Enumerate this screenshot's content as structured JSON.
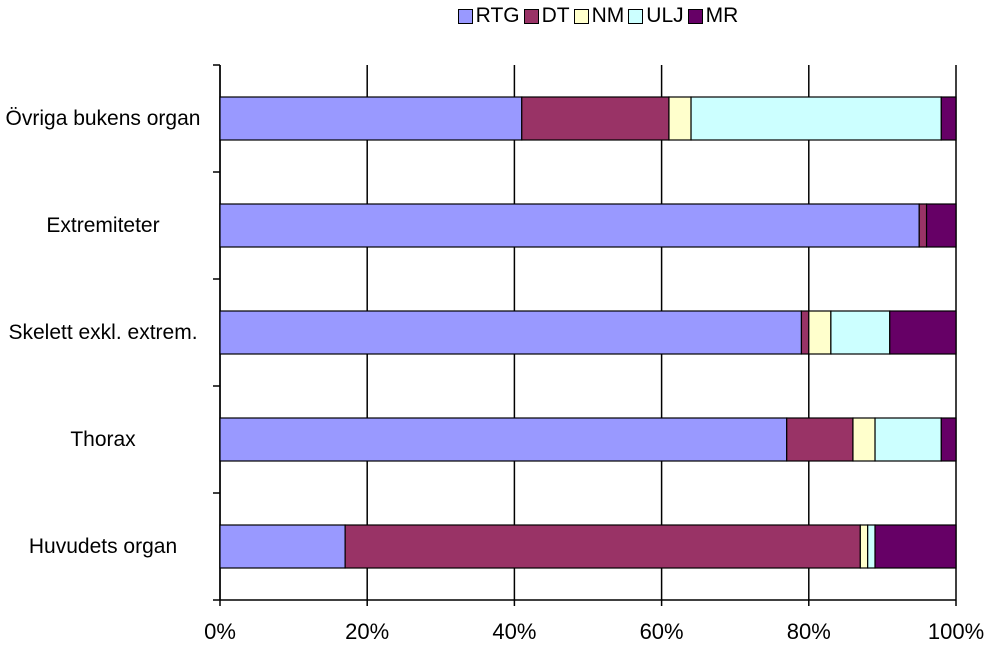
{
  "chart_data": {
    "type": "stacked-bar-horizontal",
    "categories": [
      "Huvudets organ",
      "Thorax",
      "Skelett exkl. extrem.",
      "Extremiteter",
      "Övriga bukens organ"
    ],
    "series": [
      {
        "name": "RTG",
        "color": "#9999ff",
        "values": [
          17,
          77,
          79,
          95,
          41
        ]
      },
      {
        "name": "DT",
        "color": "#993366",
        "values": [
          70,
          9,
          1,
          1,
          20
        ]
      },
      {
        "name": "NM",
        "color": "#ffffcc",
        "values": [
          1,
          3,
          3,
          0,
          3
        ]
      },
      {
        "name": "ULJ",
        "color": "#ccffff",
        "values": [
          1,
          9,
          8,
          0,
          34
        ]
      },
      {
        "name": "MR",
        "color": "#660066",
        "values": [
          11,
          2,
          9,
          4,
          2
        ]
      }
    ],
    "xlim": [
      0,
      100
    ],
    "xticks": [
      {
        "value": 0,
        "label": "0%"
      },
      {
        "value": 20,
        "label": "20%"
      },
      {
        "value": 40,
        "label": "40%"
      },
      {
        "value": 60,
        "label": "60%"
      },
      {
        "value": 80,
        "label": "80%"
      },
      {
        "value": 100,
        "label": "100%"
      }
    ],
    "grid": true,
    "legend": "top"
  }
}
